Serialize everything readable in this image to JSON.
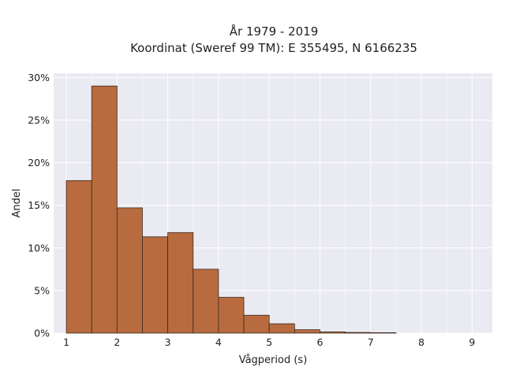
{
  "chart_data": {
    "type": "bar",
    "title_lines": [
      "År 1979 - 2019",
      "Koordinat (Sweref 99 TM): E 355495, N 6166235"
    ],
    "xlabel": "Vågperiod (s)",
    "ylabel": "Andel",
    "bin_edges": [
      1.0,
      1.5,
      2.0,
      2.5,
      3.0,
      3.5,
      4.0,
      4.5,
      5.0,
      5.5,
      6.0,
      6.5,
      7.0,
      7.5
    ],
    "values": [
      17.9,
      29.0,
      14.7,
      11.3,
      11.8,
      7.5,
      4.2,
      2.1,
      1.1,
      0.4,
      0.15,
      0.08,
      0.05
    ],
    "xlim": [
      0.75,
      9.4
    ],
    "ylim": [
      0,
      30.5
    ],
    "x_ticks": [
      1,
      2,
      3,
      4,
      5,
      6,
      7,
      8,
      9
    ],
    "x_tick_labels": [
      "1",
      "2",
      "3",
      "4",
      "5",
      "6",
      "7",
      "8",
      "9"
    ],
    "y_ticks": [
      0,
      5,
      10,
      15,
      20,
      25,
      30
    ],
    "y_tick_labels": [
      "0%",
      "5%",
      "10%",
      "15%",
      "20%",
      "25%",
      "30%"
    ],
    "bar_color": "#b86b3e",
    "bar_edge_color": "#3a2a1e",
    "plot_background": "#eaeaf2",
    "grid": true
  }
}
